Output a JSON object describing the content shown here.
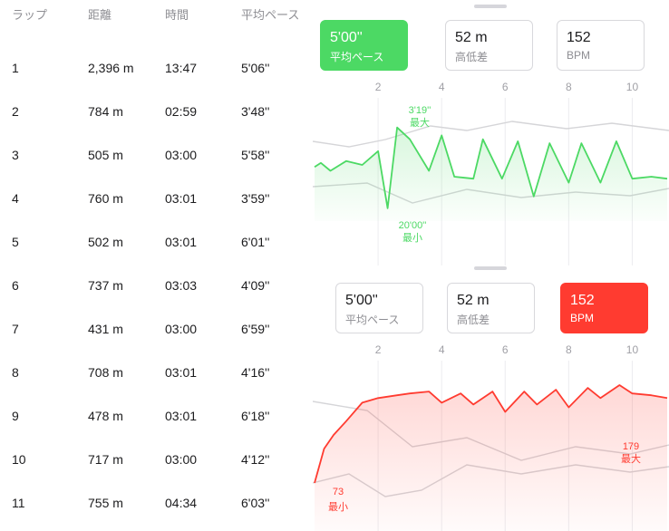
{
  "laps": {
    "headers": {
      "lap": "ラップ",
      "distance": "距離",
      "time": "時間",
      "pace": "平均ペース"
    },
    "rows": [
      {
        "lap": "1",
        "distance": "2,396 m",
        "time": "13:47",
        "pace": "5'06''"
      },
      {
        "lap": "2",
        "distance": "784 m",
        "time": "02:59",
        "pace": "3'48''"
      },
      {
        "lap": "3",
        "distance": "505 m",
        "time": "03:00",
        "pace": "5'58''"
      },
      {
        "lap": "4",
        "distance": "760 m",
        "time": "03:01",
        "pace": "3'59''"
      },
      {
        "lap": "5",
        "distance": "502 m",
        "time": "03:01",
        "pace": "6'01''"
      },
      {
        "lap": "6",
        "distance": "737 m",
        "time": "03:03",
        "pace": "4'09''"
      },
      {
        "lap": "7",
        "distance": "431 m",
        "time": "03:00",
        "pace": "6'59''"
      },
      {
        "lap": "8",
        "distance": "708 m",
        "time": "03:01",
        "pace": "4'16''"
      },
      {
        "lap": "9",
        "distance": "478 m",
        "time": "03:01",
        "pace": "6'18''"
      },
      {
        "lap": "10",
        "distance": "717 m",
        "time": "03:00",
        "pace": "4'12''"
      },
      {
        "lap": "11",
        "distance": "755 m",
        "time": "04:34",
        "pace": "6'03''"
      }
    ]
  },
  "pace_panel": {
    "cards": [
      {
        "value": "5'00''",
        "label": "平均ペース",
        "selected": true
      },
      {
        "value": "52 m",
        "label": "高低差",
        "selected": false
      },
      {
        "value": "152",
        "label": "BPM",
        "selected": false
      }
    ],
    "x_ticks": [
      "2",
      "4",
      "6",
      "8",
      "10"
    ],
    "max_value": "3'19''",
    "max_label": "最大",
    "min_value": "20'00''",
    "min_label": "最小",
    "color": "#4cd964"
  },
  "hr_panel": {
    "cards": [
      {
        "value": "5'00''",
        "label": "平均ペース",
        "selected": false
      },
      {
        "value": "52 m",
        "label": "高低差",
        "selected": false
      },
      {
        "value": "152",
        "label": "BPM",
        "selected": true
      }
    ],
    "x_ticks": [
      "2",
      "4",
      "6",
      "8",
      "10"
    ],
    "max_value": "179",
    "max_label": "最大",
    "min_value": "73",
    "min_label": "最小",
    "color": "#ff3b30"
  },
  "chart_data": [
    {
      "type": "line",
      "series": [
        {
          "name": "平均ペース",
          "x": [
            0,
            0.2,
            0.5,
            1,
            1.5,
            2,
            2.3,
            2.6,
            3,
            3.6,
            4,
            4.4,
            5,
            5.3,
            5.9,
            6.4,
            6.9,
            7.4,
            8,
            8.4,
            9,
            9.5,
            10,
            10.6,
            11.1
          ],
          "values": [
            5.4,
            5.2,
            5.6,
            5.1,
            5.3,
            4.6,
            7.5,
            3.4,
            4.0,
            5.6,
            3.8,
            5.9,
            6.0,
            4.0,
            6.0,
            4.1,
            6.9,
            4.2,
            6.2,
            4.2,
            6.2,
            4.1,
            6.0,
            5.9,
            6.0
          ]
        }
      ],
      "annotations": {
        "max": "3'19''",
        "min": "20'00''"
      },
      "x_ticks": [
        "2",
        "4",
        "6",
        "8",
        "10"
      ]
    },
    {
      "type": "area",
      "series": [
        {
          "name": "BPM",
          "x": [
            0,
            0.3,
            0.6,
            1,
            1.5,
            2,
            2.6,
            3,
            3.6,
            4,
            4.6,
            5,
            5.6,
            6,
            6.6,
            7,
            7.6,
            8,
            8.6,
            9,
            9.6,
            10,
            10.6,
            11.1
          ],
          "values": [
            73,
            110,
            125,
            140,
            160,
            165,
            168,
            170,
            172,
            160,
            170,
            158,
            172,
            150,
            172,
            158,
            174,
            155,
            176,
            165,
            179,
            170,
            168,
            165
          ]
        }
      ],
      "annotations": {
        "max": "179",
        "min": "73"
      },
      "x_ticks": [
        "2",
        "4",
        "6",
        "8",
        "10"
      ]
    }
  ]
}
